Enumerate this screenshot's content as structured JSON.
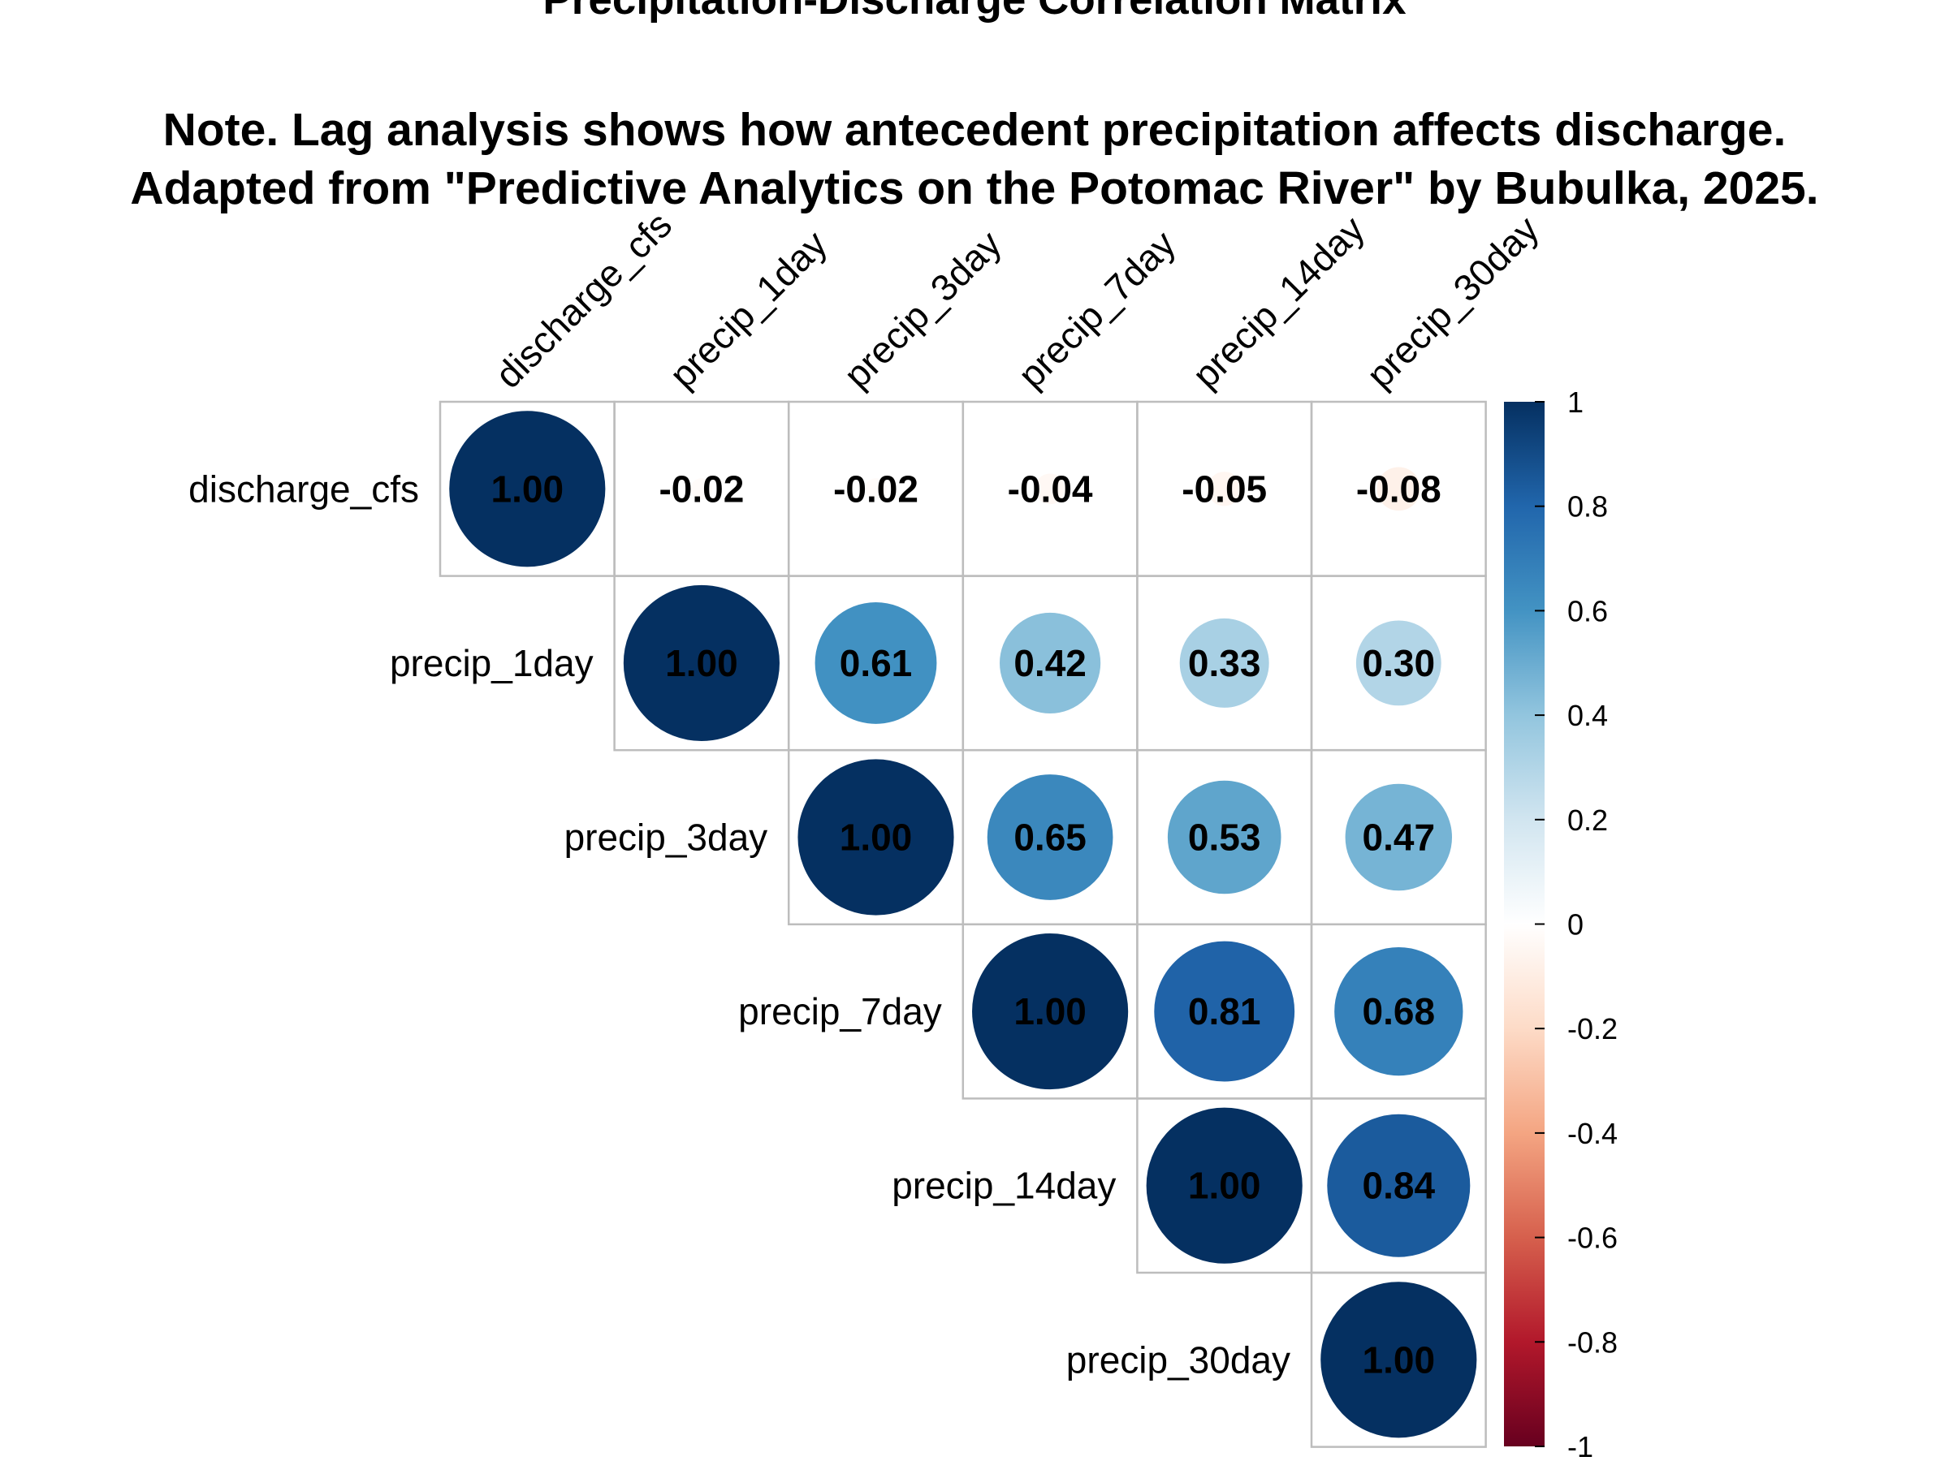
{
  "chart_data": {
    "type": "heatmap",
    "subtype": "correlation-matrix-upper-circles",
    "title": "Precipitation-Discharge Correlation Matrix",
    "note_line1": "Note. Lag analysis shows how antecedent precipitation affects discharge.",
    "note_line2": "Adapted from \"Predictive Analytics on the Potomac River\" by Bubulka, 2025.",
    "variables": [
      "discharge_cfs",
      "precip_1day",
      "precip_3day",
      "precip_7day",
      "precip_14day",
      "precip_30day"
    ],
    "matrix": [
      [
        1.0,
        -0.02,
        -0.02,
        -0.04,
        -0.05,
        -0.08
      ],
      [
        null,
        1.0,
        0.61,
        0.42,
        0.33,
        0.3
      ],
      [
        null,
        null,
        1.0,
        0.65,
        0.53,
        0.47
      ],
      [
        null,
        null,
        null,
        1.0,
        0.81,
        0.68
      ],
      [
        null,
        null,
        null,
        null,
        1.0,
        0.84
      ],
      [
        null,
        null,
        null,
        null,
        null,
        1.0
      ]
    ],
    "value_labels": [
      [
        "1.00",
        "-0.02",
        "-0.02",
        "-0.04",
        "-0.05",
        "-0.08"
      ],
      [
        null,
        "1.00",
        "0.61",
        "0.42",
        "0.33",
        "0.30"
      ],
      [
        null,
        null,
        "1.00",
        "0.65",
        "0.53",
        "0.47"
      ],
      [
        null,
        null,
        null,
        "1.00",
        "0.81",
        "0.68"
      ],
      [
        null,
        null,
        null,
        null,
        "1.00",
        "0.84"
      ],
      [
        null,
        null,
        null,
        null,
        null,
        "1.00"
      ]
    ],
    "colorbar": {
      "range": [
        -1,
        1
      ],
      "ticks": [
        1,
        0.8,
        0.6,
        0.4,
        0.2,
        0,
        -0.2,
        -0.4,
        -0.6,
        -0.8,
        -1
      ],
      "tick_labels": [
        "1",
        "0.8",
        "0.6",
        "0.4",
        "0.2",
        "0",
        "-0.2",
        "-0.4",
        "-0.6",
        "-0.8",
        "-1"
      ],
      "colors": [
        "#67001F",
        "#B2182B",
        "#D6604D",
        "#F4A582",
        "#FDDBC7",
        "#FFFFFF",
        "#D1E5F0",
        "#92C5DE",
        "#4393C3",
        "#2166AC",
        "#053061"
      ]
    },
    "grid": true,
    "legend_position": "right"
  }
}
